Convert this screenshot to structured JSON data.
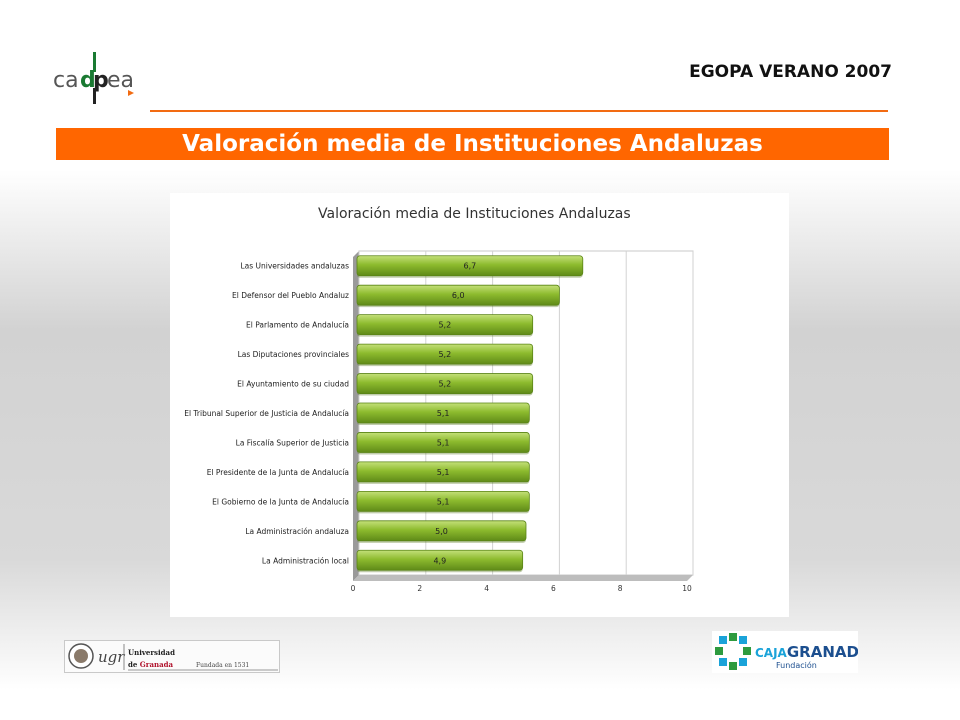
{
  "header": {
    "logo_text": "cadpea",
    "survey": "EGOPA VERANO 2007",
    "banner_title": "Valoración media de Instituciones Andaluzas"
  },
  "chart_data": {
    "type": "bar",
    "orientation": "horizontal",
    "title": "Valoración media de Instituciones Andaluzas",
    "categories": [
      "Las Universidades andaluzas",
      "El Defensor del Pueblo Andaluz",
      "El Parlamento de Andalucía",
      "Las Diputaciones provinciales",
      "El Ayuntamiento de su ciudad",
      "El Tribunal Superior de Justicia de Andalucía",
      "La Fiscalía Superior de Justicia",
      "El Presidente de la Junta de Andalucía",
      "El Gobierno de la Junta de Andalucía",
      "La Administración andaluza",
      "La Administración local"
    ],
    "values": [
      6.7,
      6.0,
      5.2,
      5.2,
      5.2,
      5.1,
      5.1,
      5.1,
      5.1,
      5.0,
      4.9
    ],
    "value_labels": [
      "6,7",
      "6,0",
      "5,2",
      "5,2",
      "5,2",
      "5,1",
      "5,1",
      "5,1",
      "5,1",
      "5,0",
      "4,9"
    ],
    "xlim": [
      0,
      10
    ],
    "ticks": [
      0,
      2,
      4,
      6,
      8,
      10
    ],
    "grid": true,
    "legend": "none",
    "bar_color": "#8dbb2e"
  },
  "footer": {
    "ugr": {
      "name_line1": "Universidad",
      "name_prefix": "de",
      "name_city": "Granada",
      "founded": "Fundada en 1531",
      "mark": "ugr"
    },
    "caja": {
      "brand_prefix": "CAJA",
      "brand_name": "GRANADA",
      "subtitle": "Fundación"
    }
  }
}
